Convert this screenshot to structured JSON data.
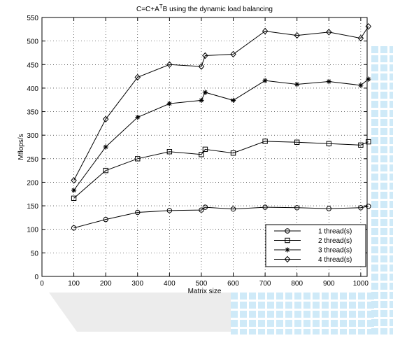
{
  "chart_data": {
    "type": "line",
    "title_parts": {
      "prefix": "C=C+A",
      "superscript": "T",
      "suffix": "B using the dynamic load balancing"
    },
    "xlabel": "Matrix size",
    "ylabel": "Mflops/s",
    "xlim": [
      0,
      1020
    ],
    "ylim": [
      0,
      550
    ],
    "xticks": [
      0,
      100,
      200,
      300,
      400,
      500,
      600,
      700,
      800,
      900,
      1000
    ],
    "yticks": [
      0,
      50,
      100,
      150,
      200,
      250,
      300,
      350,
      400,
      450,
      500,
      550
    ],
    "grid": "dotted",
    "legend_position": "bottom-right",
    "x": [
      100,
      200,
      300,
      400,
      500,
      512,
      600,
      700,
      800,
      900,
      1000,
      1024
    ],
    "series": [
      {
        "name": "1 thread(s)",
        "marker": "circle",
        "values": [
          103,
          121,
          136,
          140,
          141,
          147,
          143,
          147,
          146,
          144,
          146,
          149
        ]
      },
      {
        "name": "2 thread(s)",
        "marker": "square",
        "values": [
          166,
          225,
          250,
          265,
          259,
          270,
          262,
          287,
          285,
          282,
          279,
          286
        ]
      },
      {
        "name": "3 thread(s)",
        "marker": "star",
        "values": [
          183,
          275,
          338,
          367,
          374,
          391,
          374,
          416,
          408,
          414,
          406,
          419
        ]
      },
      {
        "name": "4 thread(s)",
        "marker": "diamond",
        "values": [
          204,
          334,
          423,
          450,
          446,
          469,
          472,
          521,
          512,
          519,
          506,
          531
        ]
      }
    ]
  }
}
